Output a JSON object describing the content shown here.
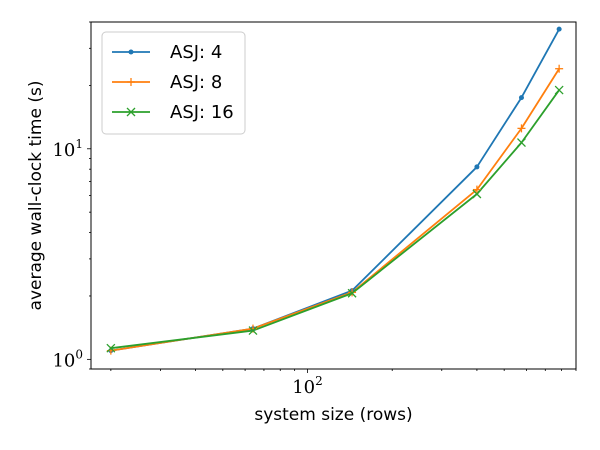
{
  "chart_data": {
    "type": "line",
    "title": "",
    "xlabel": "system size (rows)",
    "ylabel": "average wall-clock time (s)",
    "xscale": "log",
    "yscale": "log",
    "xlim": [
      17,
      900
    ],
    "ylim": [
      0.9,
      40
    ],
    "grid": false,
    "legend": {
      "position": "top-left"
    },
    "x_ticks": [
      {
        "value": 100,
        "base": "10",
        "exp": "2"
      }
    ],
    "y_ticks": [
      {
        "value": 1,
        "base": "10",
        "exp": "0"
      },
      {
        "value": 10,
        "base": "10",
        "exp": "1"
      }
    ],
    "series": [
      {
        "name": "ASJ: 4",
        "color": "#1f77b4",
        "marker": "dot",
        "x": [
          20,
          64,
          144,
          400,
          576,
          784
        ],
        "y": [
          1.1,
          1.4,
          2.12,
          8.2,
          17.5,
          37
        ]
      },
      {
        "name": "ASJ: 8",
        "color": "#ff7f0e",
        "marker": "plus",
        "x": [
          20,
          64,
          144,
          400,
          576,
          784
        ],
        "y": [
          1.1,
          1.4,
          2.08,
          6.4,
          12.5,
          24
        ]
      },
      {
        "name": "ASJ: 16",
        "color": "#2ca02c",
        "marker": "x",
        "x": [
          20,
          64,
          144,
          400,
          576,
          784
        ],
        "y": [
          1.13,
          1.37,
          2.06,
          6.1,
          10.7,
          19
        ]
      }
    ]
  }
}
